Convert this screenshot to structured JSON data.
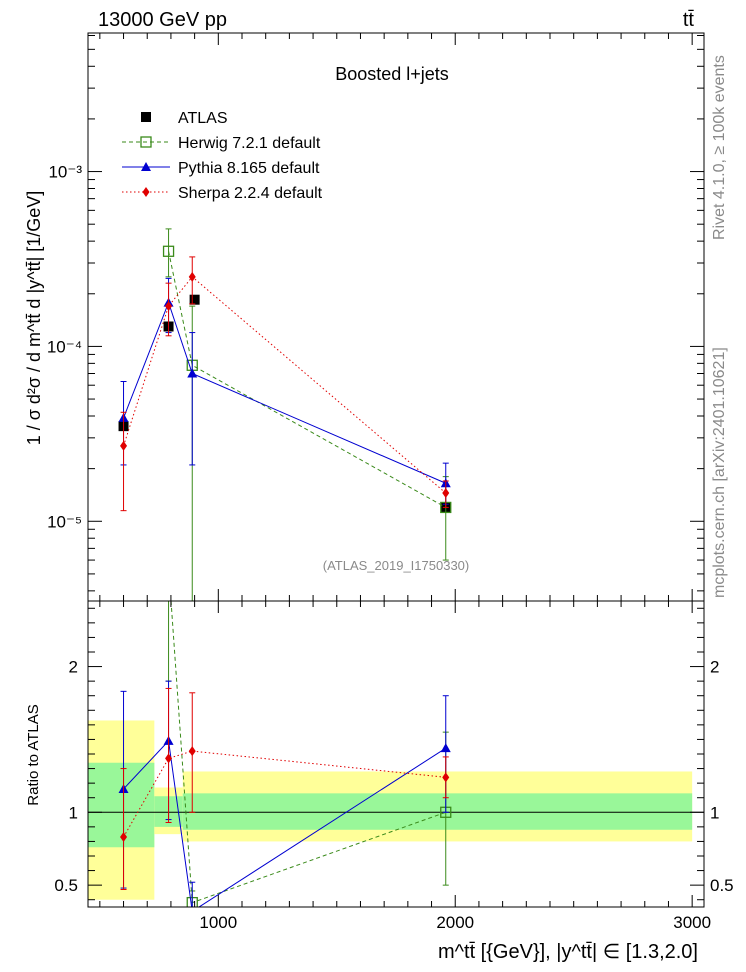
{
  "header": {
    "left": "13000 GeV pp",
    "right": "tt̄"
  },
  "side": {
    "rivet": "Rivet 4.1.0, ≥ 100k events",
    "mcplots": "mcplots.cern.ch [arXiv:2401.10621]"
  },
  "chart_data": {
    "type": "scatter",
    "title": "Boosted l+jets",
    "watermark": "(ATLAS_2019_I1750330)",
    "ylabel": "1 / σ d²σ / d m^tt̄ d |y^tt̄| [1/GeV]",
    "xlabel": "m^tt̄ [{GeV}], |y^tt̄| ∈ [1.3,2.0]",
    "ratio_ylabel": "Ratio to ATLAS",
    "xlim": [
      450,
      3050
    ],
    "ylim": [
      3.5e-06,
      0.0062
    ],
    "ratio_ylim": [
      0.35,
      2.45
    ],
    "x_ticks": [
      1000,
      2000,
      3000
    ],
    "x_tick_labels": [
      "1000",
      "2000",
      "3000"
    ],
    "y_ticks": [
      1e-05,
      0.0001,
      0.001
    ],
    "y_tick_labels": [
      "10⁻⁵",
      "10⁻⁴",
      "10⁻³"
    ],
    "ratio_ticks": [
      0.5,
      1,
      2
    ],
    "ratio_tick_labels": [
      "0.5",
      "1",
      "2"
    ],
    "bins": [
      [
        450,
        730
      ],
      [
        730,
        850
      ],
      [
        850,
        3000
      ]
    ],
    "ratio_band_inner": [
      [
        0.76,
        1.34
      ],
      [
        0.9,
        1.11
      ],
      [
        0.88,
        1.13
      ]
    ],
    "ratio_band_outer": [
      [
        0.4,
        1.63
      ],
      [
        0.85,
        1.17
      ],
      [
        0.8,
        1.28
      ]
    ],
    "series": [
      {
        "name": "ATLAS",
        "color": "#000000",
        "marker": "square-filled",
        "line": "none",
        "x": [
          600,
          790,
          900,
          1960
        ],
        "y": [
          3.5e-05,
          0.00013,
          0.000185,
          1.2e-05
        ],
        "ratio": [
          1,
          1,
          1,
          1
        ],
        "ratio_err": [
          0,
          0,
          0,
          0
        ]
      },
      {
        "name": "Herwig 7.2.1 default",
        "color": "#3a8a1a",
        "marker": "square-open",
        "line": "dashed",
        "x": [
          790,
          890,
          1960
        ],
        "y": [
          0.00035,
          7.8e-05,
          1.2e-05
        ],
        "y_err": [
          [
            0.00025,
            0.00047
          ],
          [
            1e-07,
            0.00017
          ],
          [
            6e-06,
            1.8e-05
          ]
        ],
        "ratio": [
          2.69,
          0.38,
          1.0
        ],
        "ratio_err": [
          [
            1.9,
            3.6
          ],
          [
            0.3,
            0.46
          ],
          [
            0.5,
            1.55
          ]
        ]
      },
      {
        "name": "Pythia 8.165 default",
        "color": "#0000d0",
        "marker": "triangle",
        "line": "solid",
        "x": [
          600,
          790,
          890,
          1960
        ],
        "y": [
          3.9e-05,
          0.000178,
          7e-05,
          1.65e-05
        ],
        "y_err": [
          [
            2.1e-05,
            6.3e-05
          ],
          [
            0.00012,
            0.000245
          ],
          [
            2.1e-05,
            0.00012
          ],
          [
            1.25e-05,
            2.15e-05
          ]
        ],
        "ratio": [
          1.16,
          1.49,
          0.32,
          1.44
        ],
        "ratio_err": [
          [
            0.48,
            1.83
          ],
          [
            0.95,
            1.9
          ],
          [
            0.11,
            0.52
          ],
          [
            1.0,
            1.8
          ]
        ]
      },
      {
        "name": "Sherpa 2.2.4 default",
        "color": "#e00000",
        "marker": "diamond",
        "line": "dotted",
        "x": [
          600,
          790,
          890,
          1960
        ],
        "y": [
          2.7e-05,
          0.00017,
          0.00025,
          1.45e-05
        ],
        "y_err": [
          [
            1.15e-05,
            4.2e-05
          ],
          [
            0.000115,
            0.00023
          ],
          [
            0.000175,
            0.000325
          ],
          [
            1.2e-05,
            1.7e-05
          ]
        ],
        "ratio": [
          0.83,
          1.37,
          1.42,
          1.24
        ],
        "ratio_err": [
          [
            0.47,
            1.3
          ],
          [
            0.93,
            1.85
          ],
          [
            1.0,
            1.82
          ],
          [
            1.1,
            1.38
          ]
        ]
      }
    ]
  }
}
